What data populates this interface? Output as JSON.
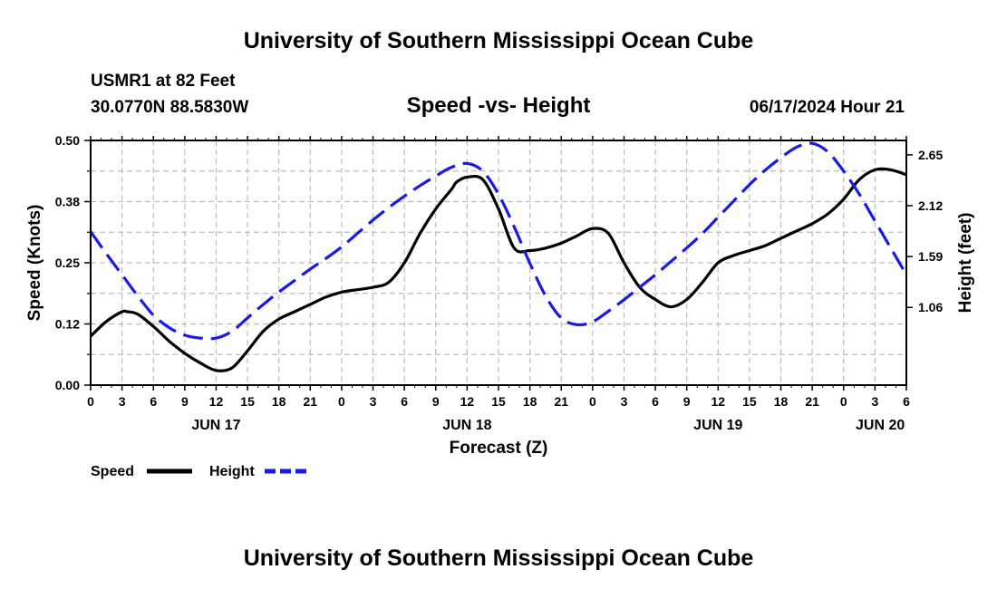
{
  "page": {
    "title": "University of Southern Mississippi Ocean Cube",
    "footer_title": "University of Southern Mississippi Ocean Cube",
    "station": "USMR1 at 82 Feet",
    "coords": "30.0770N  88.5830W",
    "date": "06/17/2024 Hour 21"
  },
  "chart_data": {
    "type": "line",
    "title": "Speed -vs- Height",
    "xlabel": "Forecast (Z)",
    "ylabel": "Speed (Knots)",
    "y2label": "Height (feet)",
    "xlim": [
      0,
      78
    ],
    "ylim": [
      0,
      0.5
    ],
    "y2lim": [
      0.25,
      2.8
    ],
    "x_tick_step": 3,
    "x_tick_labels": [
      "0",
      "3",
      "6",
      "9",
      "12",
      "15",
      "18",
      "21",
      "0",
      "3",
      "6",
      "9",
      "12",
      "15",
      "18",
      "21",
      "0",
      "3",
      "6",
      "9",
      "12",
      "15",
      "18",
      "21",
      "0",
      "3",
      "6"
    ],
    "y_tick_labels": [
      "0.00",
      "0.12",
      "0.25",
      "0.38",
      "0.50"
    ],
    "y2_tick_labels": [
      "1.06",
      "1.59",
      "2.12",
      "2.65"
    ],
    "y2_tick_values": [
      1.06,
      1.59,
      2.12,
      2.65
    ],
    "day_labels": [
      {
        "label": "JUN 17",
        "x": 12
      },
      {
        "label": "JUN 18",
        "x": 36
      },
      {
        "label": "JUN 19",
        "x": 60
      },
      {
        "label": "JUN 20",
        "x": 75.5
      }
    ],
    "grid": true,
    "series": [
      {
        "name": "Speed",
        "axis": "left",
        "color": "#000000",
        "dash": "solid",
        "x": [
          0,
          1.5,
          3,
          3.5,
          4.5,
          6,
          7.5,
          9,
          10.5,
          12,
          13.5,
          15,
          16.5,
          18,
          19.5,
          21,
          22.5,
          24,
          25.5,
          27,
          28.5,
          30,
          31.5,
          33,
          34.5,
          35,
          36,
          37.5,
          39,
          40.5,
          42,
          43.5,
          45,
          46.5,
          48,
          49.5,
          51,
          52.5,
          54,
          55.5,
          57,
          58.5,
          60,
          61.5,
          63,
          64.5,
          66,
          67.5,
          69,
          70.5,
          72,
          73.5,
          75,
          76.5,
          78
        ],
        "y": [
          0.1,
          0.13,
          0.15,
          0.15,
          0.145,
          0.12,
          0.09,
          0.065,
          0.045,
          0.03,
          0.035,
          0.07,
          0.11,
          0.135,
          0.15,
          0.165,
          0.18,
          0.19,
          0.195,
          0.2,
          0.21,
          0.25,
          0.31,
          0.36,
          0.4,
          0.415,
          0.425,
          0.42,
          0.36,
          0.28,
          0.275,
          0.28,
          0.29,
          0.305,
          0.32,
          0.31,
          0.25,
          0.2,
          0.175,
          0.16,
          0.175,
          0.21,
          0.25,
          0.265,
          0.275,
          0.285,
          0.3,
          0.315,
          0.33,
          0.35,
          0.38,
          0.42,
          0.44,
          0.44,
          0.43
        ]
      },
      {
        "name": "Height",
        "axis": "right",
        "color": "#1a1ae6",
        "dash": "dashed",
        "x": [
          0,
          1.5,
          3,
          4.5,
          6,
          7.5,
          9,
          10.5,
          12,
          13.5,
          15,
          16.5,
          18,
          19.5,
          21,
          22.5,
          24,
          25.5,
          27,
          28.5,
          30,
          31.5,
          33,
          34.5,
          36,
          37.5,
          39,
          40.5,
          42,
          43.5,
          45,
          46.5,
          48,
          49.5,
          51,
          52.5,
          54,
          55.5,
          57,
          58.5,
          60,
          61.5,
          63,
          64.5,
          66,
          67.5,
          69,
          70.5,
          72,
          73.5,
          75,
          76.5,
          78
        ],
        "y": [
          1.85,
          1.62,
          1.4,
          1.18,
          0.98,
          0.85,
          0.77,
          0.74,
          0.74,
          0.81,
          0.95,
          1.09,
          1.22,
          1.34,
          1.46,
          1.57,
          1.69,
          1.83,
          1.97,
          2.1,
          2.22,
          2.33,
          2.43,
          2.52,
          2.56,
          2.48,
          2.24,
          1.9,
          1.52,
          1.18,
          0.95,
          0.88,
          0.91,
          1.02,
          1.14,
          1.27,
          1.4,
          1.54,
          1.68,
          1.83,
          2.0,
          2.17,
          2.34,
          2.49,
          2.62,
          2.73,
          2.77,
          2.68,
          2.48,
          2.24,
          1.96,
          1.68,
          1.4
        ]
      }
    ]
  }
}
